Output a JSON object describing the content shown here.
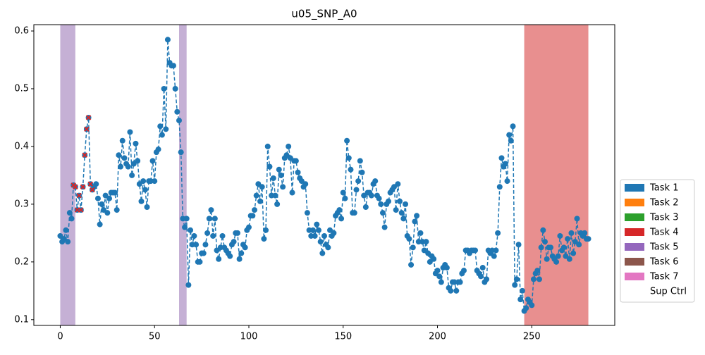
{
  "chart_data": {
    "type": "line",
    "title": "u05_SNP_A0",
    "x": [
      0,
      1,
      2,
      3,
      4,
      5,
      6,
      7,
      8,
      9,
      10,
      11,
      12,
      13,
      14,
      15,
      16,
      17,
      18,
      19,
      20,
      21,
      22,
      23,
      24,
      25,
      26,
      27,
      28,
      29,
      30,
      31,
      32,
      33,
      34,
      35,
      36,
      37,
      38,
      39,
      40,
      41,
      42,
      43,
      44,
      45,
      46,
      47,
      48,
      49,
      50,
      51,
      52,
      53,
      54,
      55,
      56,
      57,
      58,
      59,
      60,
      61,
      62,
      63,
      64,
      65,
      66,
      67,
      68,
      69,
      70,
      71,
      72,
      73,
      74,
      75,
      76,
      77,
      78,
      79,
      80,
      81,
      82,
      83,
      84,
      85,
      86,
      87,
      88,
      89,
      90,
      91,
      92,
      93,
      94,
      95,
      96,
      97,
      98,
      99,
      100,
      101,
      102,
      103,
      104,
      105,
      106,
      107,
      108,
      109,
      110,
      111,
      112,
      113,
      114,
      115,
      116,
      117,
      118,
      119,
      120,
      121,
      122,
      123,
      124,
      125,
      126,
      127,
      128,
      129,
      130,
      131,
      132,
      133,
      134,
      135,
      136,
      137,
      138,
      139,
      140,
      141,
      142,
      143,
      144,
      145,
      146,
      147,
      148,
      149,
      150,
      151,
      152,
      153,
      154,
      155,
      156,
      157,
      158,
      159,
      160,
      161,
      162,
      163,
      164,
      165,
      166,
      167,
      168,
      169,
      170,
      171,
      172,
      173,
      174,
      175,
      176,
      177,
      178,
      179,
      180,
      181,
      182,
      183,
      184,
      185,
      186,
      187,
      188,
      189,
      190,
      191,
      192,
      193,
      194,
      195,
      196,
      197,
      198,
      199,
      200,
      201,
      202,
      203,
      204,
      205,
      206,
      207,
      208,
      209,
      210,
      211,
      212,
      213,
      214,
      215,
      216,
      217,
      218,
      219,
      220,
      221,
      222,
      223,
      224,
      225,
      226,
      227,
      228,
      229,
      230,
      231,
      232,
      233,
      234,
      235,
      236,
      237,
      238,
      239,
      240,
      241,
      242,
      243,
      244,
      245,
      246,
      247,
      248,
      249,
      250,
      251,
      252,
      253,
      254,
      255,
      256,
      257,
      258,
      259,
      260,
      261,
      262,
      263,
      264,
      265,
      266,
      267,
      268,
      269,
      270,
      271,
      272,
      273,
      274,
      275,
      276,
      277,
      278,
      279,
      280
    ],
    "series": [
      {
        "color": "#1f77b4",
        "values": [
          0.245,
          0.235,
          0.24,
          0.255,
          0.235,
          0.285,
          0.275,
          0.333,
          0.33,
          0.29,
          0.315,
          0.29,
          0.33,
          0.385,
          0.43,
          0.45,
          0.335,
          0.325,
          0.33,
          0.335,
          0.31,
          0.265,
          0.3,
          0.29,
          0.315,
          0.285,
          0.31,
          0.32,
          0.32,
          0.32,
          0.29,
          0.385,
          0.365,
          0.41,
          0.38,
          0.37,
          0.365,
          0.425,
          0.35,
          0.37,
          0.405,
          0.375,
          0.335,
          0.305,
          0.34,
          0.325,
          0.295,
          0.34,
          0.34,
          0.375,
          0.34,
          0.39,
          0.395,
          0.435,
          0.42,
          0.5,
          0.43,
          0.585,
          0.545,
          0.54,
          0.54,
          0.5,
          0.46,
          0.445,
          0.39,
          0.275,
          0.26,
          0.275,
          0.16,
          0.255,
          0.23,
          0.245,
          0.23,
          0.2,
          0.2,
          0.215,
          0.215,
          0.23,
          0.25,
          0.275,
          0.29,
          0.245,
          0.275,
          0.22,
          0.205,
          0.225,
          0.245,
          0.225,
          0.22,
          0.215,
          0.21,
          0.23,
          0.235,
          0.25,
          0.25,
          0.205,
          0.215,
          0.23,
          0.225,
          0.255,
          0.26,
          0.28,
          0.28,
          0.29,
          0.315,
          0.335,
          0.305,
          0.33,
          0.24,
          0.255,
          0.4,
          0.365,
          0.315,
          0.345,
          0.315,
          0.3,
          0.36,
          0.35,
          0.33,
          0.38,
          0.385,
          0.4,
          0.38,
          0.32,
          0.375,
          0.375,
          0.355,
          0.345,
          0.34,
          0.33,
          0.335,
          0.285,
          0.255,
          0.245,
          0.255,
          0.245,
          0.265,
          0.255,
          0.235,
          0.215,
          0.245,
          0.23,
          0.225,
          0.255,
          0.245,
          0.25,
          0.28,
          0.285,
          0.29,
          0.275,
          0.32,
          0.31,
          0.41,
          0.38,
          0.36,
          0.285,
          0.285,
          0.325,
          0.34,
          0.375,
          0.355,
          0.315,
          0.295,
          0.32,
          0.32,
          0.315,
          0.335,
          0.34,
          0.315,
          0.31,
          0.3,
          0.285,
          0.26,
          0.3,
          0.305,
          0.32,
          0.325,
          0.33,
          0.29,
          0.335,
          0.305,
          0.285,
          0.275,
          0.3,
          0.245,
          0.24,
          0.195,
          0.225,
          0.27,
          0.28,
          0.235,
          0.25,
          0.235,
          0.22,
          0.235,
          0.215,
          0.2,
          0.21,
          0.205,
          0.18,
          0.185,
          0.175,
          0.165,
          0.19,
          0.195,
          0.19,
          0.155,
          0.15,
          0.165,
          0.165,
          0.15,
          0.165,
          0.165,
          0.18,
          0.185,
          0.22,
          0.22,
          0.215,
          0.22,
          0.22,
          0.22,
          0.185,
          0.18,
          0.175,
          0.19,
          0.165,
          0.17,
          0.22,
          0.215,
          0.22,
          0.21,
          0.22,
          0.25,
          0.33,
          0.38,
          0.365,
          0.37,
          0.34,
          0.42,
          0.41,
          0.435,
          0.16,
          0.17,
          0.23,
          0.135,
          0.15,
          0.115,
          0.12,
          0.135,
          0.13,
          0.125,
          0.17,
          0.18,
          0.185,
          0.17,
          0.225,
          0.255,
          0.235,
          0.205,
          0.225,
          0.225,
          0.21,
          0.205,
          0.2,
          0.21,
          0.245,
          0.22,
          0.225,
          0.21,
          0.24,
          0.205,
          0.25,
          0.215,
          0.235,
          0.275,
          0.23,
          0.25,
          0.245,
          0.25,
          0.24,
          0.24
        ]
      }
    ],
    "task_points": {
      "color": "#d62728",
      "x": [
        7,
        8,
        9,
        10,
        11,
        12,
        13,
        14,
        15,
        16,
        17
      ]
    },
    "spans": [
      {
        "start": 0,
        "end": 8,
        "color": "#c5b0d5"
      },
      {
        "start": 63,
        "end": 67,
        "color": "#c5b0d5"
      },
      {
        "start": 246,
        "end": 280,
        "color": "#e88f8f"
      }
    ],
    "legend": [
      {
        "name": "Task 1",
        "color": "#1f77b4"
      },
      {
        "name": "Task 2",
        "color": "#ff7f0e"
      },
      {
        "name": "Task 3",
        "color": "#2ca02c"
      },
      {
        "name": "Task 4",
        "color": "#d62728"
      },
      {
        "name": "Task 5",
        "color": "#9467bd"
      },
      {
        "name": "Task 6",
        "color": "#8c564b"
      },
      {
        "name": "Task 7",
        "color": "#e377c2"
      },
      {
        "name": "Sup Ctrl",
        "color": "#ffffff"
      }
    ],
    "xlim": [
      -14,
      294
    ],
    "ylim": [
      0.09,
      0.611
    ],
    "xticks": [
      0,
      50,
      100,
      150,
      200,
      250
    ],
    "yticks": [
      0.1,
      0.2,
      0.3,
      0.4,
      0.5,
      0.6
    ]
  }
}
